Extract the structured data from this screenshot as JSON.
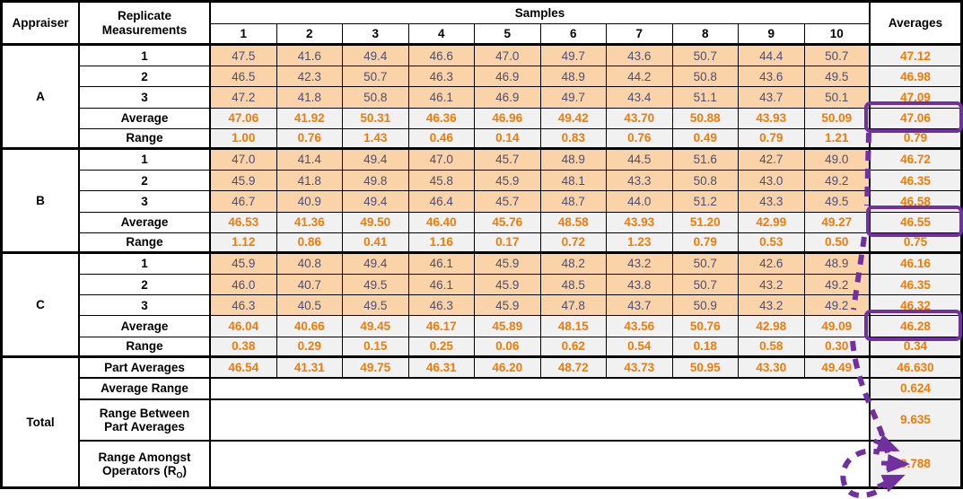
{
  "chart_data": {
    "type": "table",
    "header": {
      "appraiser": "Appraiser",
      "replicate_line1": "Replicate",
      "replicate_line2": "Measurements",
      "samples": "Samples",
      "sample_numbers": [
        "1",
        "2",
        "3",
        "4",
        "5",
        "6",
        "7",
        "8",
        "9",
        "10"
      ],
      "averages": "Averages"
    },
    "appraisers": [
      {
        "name": "A",
        "rows": [
          {
            "label": "1",
            "type": "measurement",
            "values": [
              "47.5",
              "41.6",
              "49.4",
              "46.6",
              "47.0",
              "49.7",
              "43.6",
              "50.7",
              "44.4",
              "50.7"
            ],
            "average": "47.12"
          },
          {
            "label": "2",
            "type": "measurement",
            "values": [
              "46.5",
              "42.3",
              "50.7",
              "46.3",
              "46.9",
              "48.9",
              "44.2",
              "50.8",
              "43.6",
              "49.5"
            ],
            "average": "46.98"
          },
          {
            "label": "3",
            "type": "measurement",
            "values": [
              "47.2",
              "41.8",
              "50.8",
              "46.1",
              "46.9",
              "49.7",
              "43.4",
              "51.1",
              "43.7",
              "50.1"
            ],
            "average": "47.09"
          },
          {
            "label": "Average",
            "type": "average",
            "values": [
              "47.06",
              "41.92",
              "50.31",
              "46.36",
              "46.96",
              "49.42",
              "43.70",
              "50.88",
              "43.93",
              "50.09"
            ],
            "average": "47.06",
            "boxed": true
          },
          {
            "label": "Range",
            "type": "range",
            "values": [
              "1.00",
              "0.76",
              "1.43",
              "0.46",
              "0.14",
              "0.83",
              "0.76",
              "0.49",
              "0.79",
              "1.21"
            ],
            "average": "0.79"
          }
        ]
      },
      {
        "name": "B",
        "rows": [
          {
            "label": "1",
            "type": "measurement",
            "values": [
              "47.0",
              "41.4",
              "49.4",
              "47.0",
              "45.7",
              "48.9",
              "44.5",
              "51.6",
              "42.7",
              "49.0"
            ],
            "average": "46.72"
          },
          {
            "label": "2",
            "type": "measurement",
            "values": [
              "45.9",
              "41.8",
              "49.8",
              "45.8",
              "45.9",
              "48.1",
              "43.3",
              "50.8",
              "43.0",
              "49.2"
            ],
            "average": "46.35"
          },
          {
            "label": "3",
            "type": "measurement",
            "values": [
              "46.7",
              "40.9",
              "49.4",
              "46.4",
              "45.7",
              "48.7",
              "44.0",
              "51.2",
              "43.3",
              "49.5"
            ],
            "average": "46.58"
          },
          {
            "label": "Average",
            "type": "average",
            "values": [
              "46.53",
              "41.36",
              "49.50",
              "46.40",
              "45.76",
              "48.58",
              "43.93",
              "51.20",
              "42.99",
              "49.27"
            ],
            "average": "46.55",
            "boxed": true
          },
          {
            "label": "Range",
            "type": "range",
            "values": [
              "1.12",
              "0.86",
              "0.41",
              "1.16",
              "0.17",
              "0.72",
              "1.23",
              "0.79",
              "0.53",
              "0.50"
            ],
            "average": "0.75"
          }
        ]
      },
      {
        "name": "C",
        "rows": [
          {
            "label": "1",
            "type": "measurement",
            "values": [
              "45.9",
              "40.8",
              "49.4",
              "46.1",
              "45.9",
              "48.2",
              "43.2",
              "50.7",
              "42.6",
              "48.9"
            ],
            "average": "46.16"
          },
          {
            "label": "2",
            "type": "measurement",
            "values": [
              "46.0",
              "40.7",
              "49.5",
              "46.1",
              "45.9",
              "48.5",
              "43.8",
              "50.7",
              "43.2",
              "49.2"
            ],
            "average": "46.35"
          },
          {
            "label": "3",
            "type": "measurement",
            "values": [
              "46.3",
              "40.5",
              "49.5",
              "46.3",
              "45.9",
              "47.8",
              "43.7",
              "50.9",
              "43.2",
              "49.2"
            ],
            "average": "46.32"
          },
          {
            "label": "Average",
            "type": "average",
            "values": [
              "46.04",
              "40.66",
              "49.45",
              "46.17",
              "45.89",
              "48.15",
              "43.56",
              "50.76",
              "42.98",
              "49.09"
            ],
            "average": "46.28",
            "boxed": true
          },
          {
            "label": "Range",
            "type": "range",
            "values": [
              "0.38",
              "0.29",
              "0.15",
              "0.25",
              "0.06",
              "0.62",
              "0.54",
              "0.18",
              "0.58",
              "0.30"
            ],
            "average": "0.34"
          }
        ]
      }
    ],
    "total": {
      "name": "Total",
      "rows": [
        {
          "label_lines": [
            "Part Averages"
          ],
          "type": "values",
          "values": [
            "46.54",
            "41.31",
            "49.75",
            "46.31",
            "46.20",
            "48.72",
            "43.73",
            "50.95",
            "43.30",
            "49.49"
          ],
          "average": "46.630"
        },
        {
          "label_lines": [
            "Average Range"
          ],
          "type": "empty",
          "average": "0.624"
        },
        {
          "label_lines": [
            "Range Between",
            "Part Averages"
          ],
          "type": "empty",
          "average": "9.635"
        },
        {
          "label_lines": [
            "Range Amongst"
          ],
          "label2_pre": "Operators (R",
          "label2_sub": "O",
          "label2_post": ")",
          "type": "empty",
          "average": "0.788"
        }
      ]
    }
  },
  "annotation": {
    "highlighted_averages": [
      "47.06",
      "46.55",
      "46.28"
    ],
    "arrow_target_value": "0.788",
    "highlight_color": "#7030A0"
  },
  "colors": {
    "measurement_bg": "#FAD3A8",
    "summary_bg": "#F1F1F1",
    "measurement_text": "#4E4E73",
    "accent_text": "#EE7C05",
    "annotation_purple": "#7030A0",
    "border": "#000000"
  }
}
